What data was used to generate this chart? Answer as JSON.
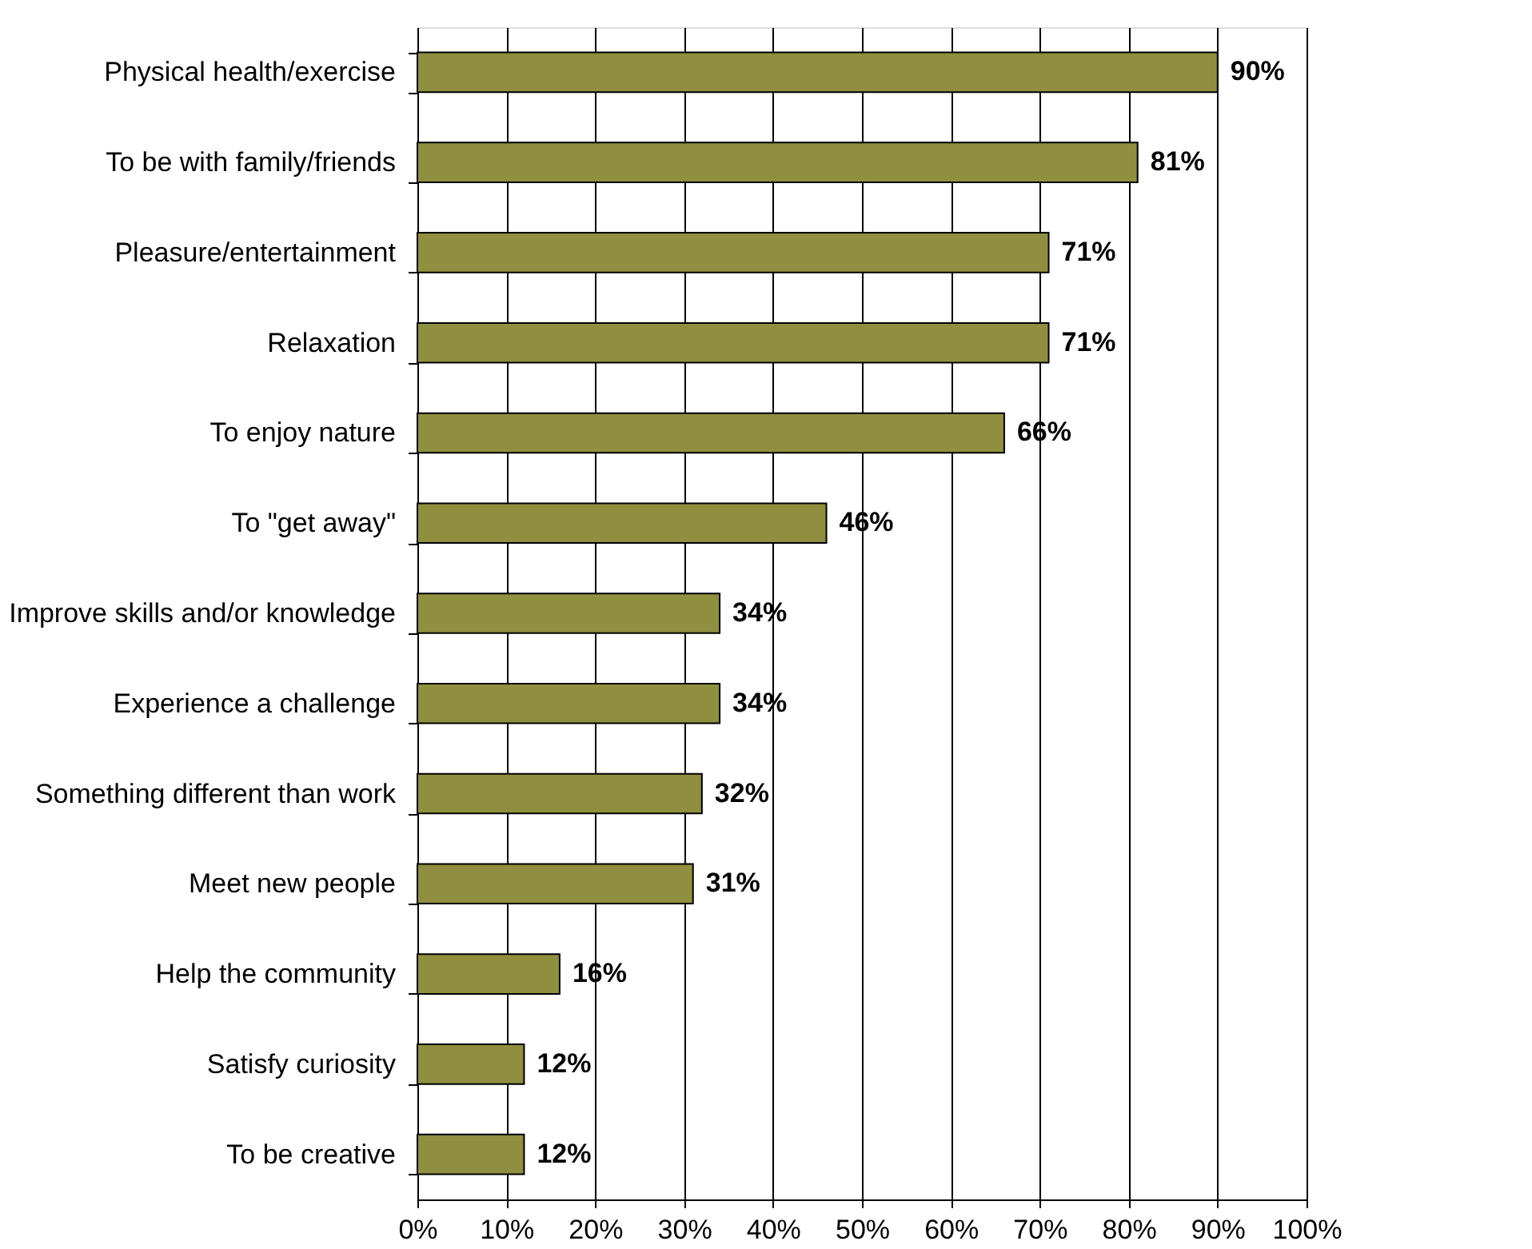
{
  "chart_data": {
    "type": "bar",
    "orientation": "horizontal",
    "categories": [
      "Physical health/exercise",
      "To be with family/friends",
      "Pleasure/entertainment",
      "Relaxation",
      "To enjoy nature",
      "To \"get away\"",
      "Improve skills and/or knowledge",
      "Experience a challenge",
      "Something different than work",
      "Meet new people",
      "Help the community",
      "Satisfy curiosity",
      "To be creative"
    ],
    "values": [
      90,
      81,
      71,
      71,
      66,
      46,
      34,
      34,
      32,
      31,
      16,
      12,
      12
    ],
    "color": "#8f8f3f",
    "value_labels": [
      "90%",
      "81%",
      "71%",
      "71%",
      "66%",
      "46%",
      "34%",
      "34%",
      "32%",
      "31%",
      "16%",
      "12%",
      "12%"
    ],
    "xlim": [
      0,
      100
    ],
    "xticks": [
      {
        "value": 0,
        "label": "0%"
      },
      {
        "value": 10,
        "label": "10%"
      },
      {
        "value": 20,
        "label": "20%"
      },
      {
        "value": 30,
        "label": "30%"
      },
      {
        "value": 40,
        "label": "40%"
      },
      {
        "value": 50,
        "label": "50%"
      },
      {
        "value": 60,
        "label": "60%"
      },
      {
        "value": 70,
        "label": "70%"
      },
      {
        "value": 80,
        "label": "80%"
      },
      {
        "value": 90,
        "label": "90%"
      },
      {
        "value": 100,
        "label": "100%"
      }
    ],
    "grid": "x"
  }
}
